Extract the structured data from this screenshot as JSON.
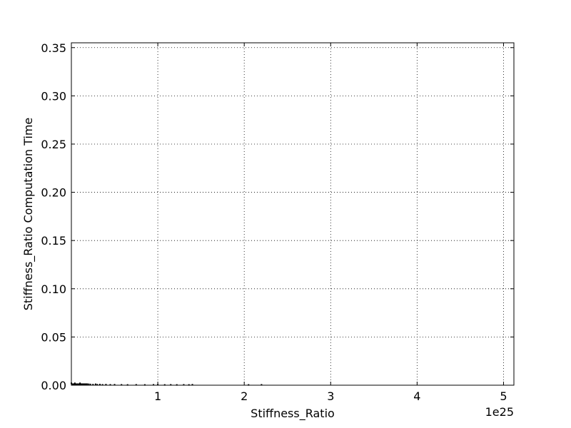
{
  "chart_data": {
    "type": "scatter",
    "xlabel": "Stiffness_Ratio",
    "ylabel": "Stiffness_Ratio Computation Time",
    "x_offset_label": "1e25",
    "x_scale_factor": 1e+25,
    "xlim": [
      0,
      5.12
    ],
    "ylim": [
      0,
      0.355
    ],
    "x_ticks": [
      1,
      2,
      3,
      4,
      5
    ],
    "x_tick_labels": [
      "1",
      "2",
      "3",
      "4",
      "5"
    ],
    "y_ticks": [
      0.0,
      0.05,
      0.1,
      0.15,
      0.2,
      0.25,
      0.3,
      0.35
    ],
    "y_tick_labels": [
      "0.00",
      "0.05",
      "0.10",
      "0.15",
      "0.20",
      "0.25",
      "0.30",
      "0.35"
    ],
    "grid": true,
    "marker_color": "#000000",
    "series": [
      {
        "x": [
          0.0,
          0.02,
          0.04,
          0.06,
          0.08,
          0.1,
          0.12,
          0.15,
          0.18,
          0.2,
          0.22,
          0.25,
          0.28,
          0.3,
          0.33,
          0.36,
          0.4,
          0.45,
          0.5,
          0.58,
          0.65,
          0.75,
          0.85,
          0.95,
          1.0,
          1.08,
          1.15,
          1.22,
          1.3,
          1.36,
          1.4,
          2.05,
          2.2
        ],
        "y": [
          0.002,
          0.001,
          0.002,
          0.001,
          0.001,
          0.002,
          0.001,
          0.001,
          0.0005,
          0.001,
          0.0008,
          0.0006,
          0.001,
          0.0005,
          0.0007,
          0.0004,
          0.0006,
          0.0004,
          0.0005,
          0.0004,
          0.0003,
          0.0004,
          0.0003,
          0.0004,
          0.0005,
          0.0003,
          0.0004,
          0.0003,
          0.0004,
          0.0003,
          0.0005,
          0.0003,
          0.0004
        ]
      }
    ]
  }
}
